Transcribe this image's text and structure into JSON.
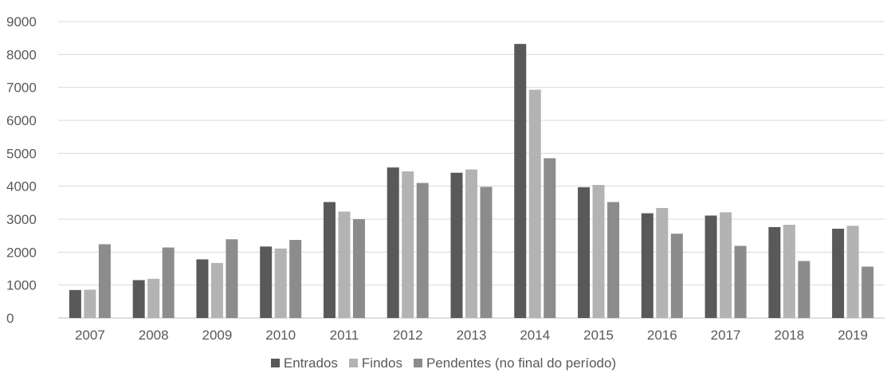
{
  "chart_data": {
    "type": "bar",
    "categories": [
      "2007",
      "2008",
      "2009",
      "2010",
      "2011",
      "2012",
      "2013",
      "2014",
      "2015",
      "2016",
      "2017",
      "2018",
      "2019"
    ],
    "series": [
      {
        "name": "Entrados",
        "color": "#595959",
        "values": [
          850,
          1150,
          1780,
          2170,
          3520,
          4570,
          4410,
          8320,
          3970,
          3180,
          3110,
          2760,
          2710
        ]
      },
      {
        "name": "Findos",
        "color": "#b3b3b3",
        "values": [
          860,
          1190,
          1670,
          2110,
          3230,
          4450,
          4510,
          6930,
          4040,
          3340,
          3210,
          2830,
          2800
        ]
      },
      {
        "name": "Pendentes (no final do período)",
        "color": "#8c8c8c",
        "values": [
          2240,
          2140,
          2390,
          2370,
          3000,
          4100,
          3980,
          4850,
          3520,
          2560,
          2190,
          1730,
          1560
        ]
      }
    ],
    "yticks": [
      "0",
      "1000",
      "2000",
      "3000",
      "4000",
      "5000",
      "6000",
      "7000",
      "8000",
      "9000"
    ],
    "ylim": [
      0,
      9000
    ],
    "grid": true,
    "legend_position": "bottom",
    "title": "",
    "xlabel": "",
    "ylabel": ""
  }
}
